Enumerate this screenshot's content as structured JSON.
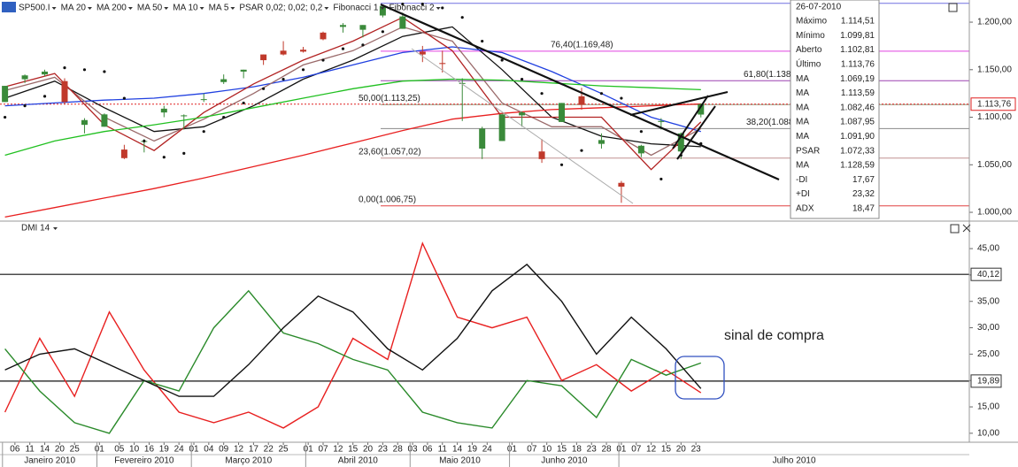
{
  "toolbar": {
    "symbol": "SP500.I",
    "tools": [
      "Fibonacci 1",
      "Fibonacci 2"
    ]
  },
  "info_panel": {
    "date": "26-07-2010",
    "rows": [
      {
        "label": "Máximo",
        "value": "1.114,51",
        "color": "#222222"
      },
      {
        "label": "Mínimo",
        "value": "1.099,81",
        "color": "#222222"
      },
      {
        "label": "Aberto",
        "value": "1.102,81",
        "color": "#222222"
      },
      {
        "label": "Último",
        "value": "1.113,76",
        "color": "#222222"
      },
      {
        "label": "MA",
        "value": "1.069,19",
        "color": "#222222"
      },
      {
        "label": "MA",
        "value": "1.113,59",
        "color": "#e03030"
      },
      {
        "label": "MA",
        "value": "1.082,46",
        "color": "#2040e0"
      },
      {
        "label": "MA",
        "value": "1.087,95",
        "color": "#c04040"
      },
      {
        "label": "MA",
        "value": "1.091,90",
        "color": "#c03030"
      },
      {
        "label": "PSAR",
        "value": "1.072,33",
        "color": "#222222"
      },
      {
        "label": "MA",
        "value": "1.128,59",
        "color": "#20b020"
      },
      {
        "label": "-DI",
        "value": "17,67",
        "color": "#e03030"
      },
      {
        "label": "+DI",
        "value": "23,32",
        "color": "#20a020"
      },
      {
        "label": "ADX",
        "value": "18,47",
        "color": "#222222"
      }
    ]
  },
  "chart_data": [
    {
      "type": "candlestick",
      "xlim": [
        -1,
        194
      ],
      "ylim": [
        992.6,
        1223.3
      ],
      "yticks": [
        {
          "value": 1000,
          "label": "1.000,00"
        },
        {
          "value": 1050,
          "label": "1.050,00"
        },
        {
          "value": 1100,
          "label": "1.100,00"
        },
        {
          "value": 1150,
          "label": "1.150,00"
        },
        {
          "value": 1200,
          "label": "1.200,00"
        }
      ],
      "candles": {
        "up_color": "#3a8a3a",
        "down_color": "#c0392b",
        "x": [
          0,
          4,
          8,
          12,
          16,
          20,
          24,
          28,
          32,
          36,
          40,
          44,
          48,
          52,
          56,
          60,
          64,
          68,
          72,
          76,
          80,
          84,
          88,
          92,
          96,
          100,
          104,
          108,
          112,
          116,
          120,
          124,
          128,
          132,
          136,
          140
        ],
        "open": [
          1116,
          1140,
          1145,
          1138,
          1092,
          1090,
          1066,
          1075,
          1105,
          1101,
          1119,
          1137,
          1148,
          1166,
          1170,
          1171,
          1189,
          1195,
          1192,
          1207,
          1193,
          1169,
          1157,
          1136,
          1067,
          1075,
          1102,
          1064,
          1095,
          1122,
          1072,
          1031,
          1062,
          1095,
          1064,
          1102.81
        ],
        "high": [
          1133,
          1145,
          1150,
          1141,
          1099,
          1104,
          1071,
          1077,
          1112,
          1103,
          1125,
          1145,
          1150,
          1166,
          1180,
          1174,
          1190,
          1199,
          1197,
          1217,
          1210,
          1175,
          1170,
          1141,
          1090,
          1104,
          1106,
          1077,
          1115,
          1131,
          1083,
          1033,
          1071,
          1099,
          1084,
          1114.51
        ],
        "low": [
          1116,
          1136,
          1143,
          1114,
          1083,
          1090,
          1056,
          1063,
          1100,
          1087,
          1116,
          1135,
          1141,
          1155,
          1165,
          1168,
          1181,
          1189,
          1184,
          1205,
          1193,
          1158,
          1147,
          1096,
          1056,
          1075,
          1090,
          1052,
          1095,
          1108,
          1067,
          1010,
          1058,
          1087,
          1056,
          1099.81
        ],
        "close": [
          1133,
          1144,
          1148,
          1116,
          1097,
          1103,
          1057,
          1075,
          1109,
          1102,
          1119,
          1140,
          1150,
          1160,
          1166,
          1169,
          1182,
          1197,
          1197,
          1217,
          1206,
          1166,
          1156,
          1136,
          1088,
          1103,
          1105,
          1056,
          1115,
          1113,
          1076,
          1027,
          1070,
          1096,
          1083,
          1113.76
        ]
      },
      "x": [
        0,
        10,
        20,
        30,
        40,
        50,
        60,
        70,
        80,
        90,
        100,
        110,
        120,
        130,
        140
      ],
      "series": [
        {
          "name": "MA 20",
          "color": "#111111",
          "values": [
            1120,
            1138,
            1110,
            1085,
            1090,
            1112,
            1140,
            1160,
            1185,
            1195,
            1150,
            1100,
            1080,
            1072,
            1069
          ]
        },
        {
          "name": "MA 200",
          "color": "#e82020",
          "values": [
            995,
            1005,
            1015,
            1025,
            1036,
            1048,
            1060,
            1073,
            1086,
            1098,
            1104,
            1108,
            1110,
            1112,
            1114
          ]
        },
        {
          "name": "MA 50",
          "color": "#2040e0",
          "values": [
            1112,
            1115,
            1118,
            1120,
            1125,
            1132,
            1142,
            1155,
            1168,
            1174,
            1168,
            1148,
            1125,
            1100,
            1085
          ]
        },
        {
          "name": "MA 10",
          "color": "#9a6a6a",
          "values": [
            1128,
            1142,
            1100,
            1075,
            1098,
            1125,
            1155,
            1170,
            1195,
            1180,
            1115,
            1090,
            1090,
            1060,
            1088
          ]
        },
        {
          "name": "MA 5",
          "color": "#b22222",
          "values": [
            1132,
            1146,
            1092,
            1065,
            1105,
            1135,
            1160,
            1180,
            1205,
            1170,
            1100,
            1100,
            1100,
            1045,
            1095
          ]
        },
        {
          "color": "#20c020",
          "values": [
            1060,
            1075,
            1085,
            1092,
            1100,
            1110,
            1120,
            1130,
            1138,
            1140,
            1139,
            1136,
            1133,
            1131,
            1129
          ]
        }
      ],
      "psar": {
        "name": "PSAR 0,02; 0,02; 0,2",
        "color": "#111111",
        "x": [
          0,
          4,
          8,
          12,
          16,
          20,
          24,
          28,
          32,
          36,
          40,
          44,
          48,
          52,
          56,
          60,
          64,
          68,
          72,
          76,
          80,
          84,
          88,
          92,
          96,
          100,
          104,
          108,
          112,
          116,
          120,
          124,
          128,
          132,
          136,
          140
        ],
        "values": [
          1100,
          1112,
          1122,
          1152,
          1150,
          1148,
          1120,
          1075,
          1058,
          1062,
          1085,
          1100,
          1115,
          1130,
          1140,
          1150,
          1160,
          1172,
          1176,
          1190,
          1219,
          1219,
          1215,
          1205,
          1180,
          1160,
          1140,
          1125,
          1050,
          1065,
          1125,
          1120,
          1085,
          1035,
          1060,
          1072.33
        ]
      },
      "fibonacci": [
        {
          "value": 1219.8,
          "color": "#7070e0"
        },
        {
          "value": 1169.48,
          "label": "76,40(1.169,48)",
          "color": "#e040e0"
        },
        {
          "value": 1138.4,
          "label": "61,80(1.138",
          "color": "#9b40b0"
        },
        {
          "value": 1113.25,
          "label": "50,00(1.113,25)",
          "color": "#8a9a7a"
        },
        {
          "value": 1088.1,
          "label": "38,20(1.088",
          "color": "#888888"
        },
        {
          "value": 1057.02,
          "label": "23,60(1.057,02)",
          "color": "#c09090"
        },
        {
          "value": 1006.75,
          "label": "0,00(1.006,75)",
          "color": "#e04040"
        }
      ],
      "last": {
        "value": 1113.76,
        "label": "1.113,76",
        "color": "#e02020"
      }
    },
    {
      "type": "line",
      "title": "DMI 14",
      "xlim": [
        -1,
        194
      ],
      "ylim": [
        8.3,
        48.2
      ],
      "yticks": [
        {
          "value": 10,
          "label": "10,00"
        },
        {
          "value": 15,
          "label": "15,00"
        },
        {
          "value": 20,
          "label": "20,00"
        },
        {
          "value": 25,
          "label": "25,00"
        },
        {
          "value": 30,
          "label": "30,00"
        },
        {
          "value": 35,
          "label": "35,00"
        },
        {
          "value": 40,
          "label": "40,00"
        },
        {
          "value": 45,
          "label": "45,00"
        }
      ],
      "x": [
        0,
        7,
        14,
        21,
        28,
        35,
        42,
        49,
        56,
        63,
        70,
        77,
        84,
        91,
        98,
        105,
        112,
        119,
        126,
        133,
        140
      ],
      "series": [
        {
          "color": "#e82020",
          "values": [
            14,
            28,
            17,
            33,
            22,
            14,
            12,
            14,
            11,
            15,
            28,
            24,
            46,
            32,
            30,
            32,
            20,
            23,
            18,
            22,
            17.67
          ]
        },
        {
          "color": "#2a8a2a",
          "values": [
            26,
            18,
            12,
            10,
            20,
            18,
            30,
            37,
            29,
            27,
            24,
            22,
            14,
            12,
            11,
            20,
            19,
            13,
            24,
            21,
            23.32
          ]
        },
        {
          "color": "#111111",
          "values": [
            22,
            25,
            26,
            23,
            20,
            17,
            17,
            23,
            30,
            36,
            33,
            26,
            22,
            28,
            37,
            42,
            35,
            25,
            32,
            26,
            18.47
          ]
        }
      ],
      "levels": [
        {
          "value": 40.12,
          "label": "40,12"
        },
        {
          "value": 19.89,
          "label": "19,89"
        }
      ],
      "xticks": [
        {
          "value": 2,
          "label": "06"
        },
        {
          "value": 5,
          "label": "11"
        },
        {
          "value": 8,
          "label": "14"
        },
        {
          "value": 11,
          "label": "20"
        },
        {
          "value": 14,
          "label": "25"
        },
        {
          "value": 19,
          "label": "01"
        },
        {
          "value": 23,
          "label": "05"
        },
        {
          "value": 26,
          "label": "10"
        },
        {
          "value": 29,
          "label": "16"
        },
        {
          "value": 32,
          "label": "19"
        },
        {
          "value": 35,
          "label": "24"
        },
        {
          "value": 38,
          "label": "01"
        },
        {
          "value": 41,
          "label": "04"
        },
        {
          "value": 44,
          "label": "09"
        },
        {
          "value": 47,
          "label": "12"
        },
        {
          "value": 50,
          "label": "17"
        },
        {
          "value": 53,
          "label": "22"
        },
        {
          "value": 56,
          "label": "25"
        },
        {
          "value": 61,
          "label": "01"
        },
        {
          "value": 64,
          "label": "07"
        },
        {
          "value": 67,
          "label": "12"
        },
        {
          "value": 70,
          "label": "15"
        },
        {
          "value": 73,
          "label": "20"
        },
        {
          "value": 76,
          "label": "23"
        },
        {
          "value": 79,
          "label": "28"
        },
        {
          "value": 82,
          "label": "03"
        },
        {
          "value": 85,
          "label": "06"
        },
        {
          "value": 88,
          "label": "11"
        },
        {
          "value": 91,
          "label": "14"
        },
        {
          "value": 94,
          "label": "19"
        },
        {
          "value": 97,
          "label": "24"
        },
        {
          "value": 102,
          "label": "01"
        },
        {
          "value": 106,
          "label": "07"
        },
        {
          "value": 109,
          "label": "10"
        },
        {
          "value": 112,
          "label": "15"
        },
        {
          "value": 115,
          "label": "18"
        },
        {
          "value": 118,
          "label": "23"
        },
        {
          "value": 121,
          "label": "28"
        },
        {
          "value": 124,
          "label": "01"
        },
        {
          "value": 127,
          "label": "07"
        },
        {
          "value": 130,
          "label": "12"
        },
        {
          "value": 133,
          "label": "15"
        },
        {
          "value": 136,
          "label": "20"
        },
        {
          "value": 139,
          "label": "23"
        }
      ],
      "months": [
        {
          "value": 0,
          "label": "Janeiro 2010"
        },
        {
          "value": 19,
          "label": "Fevereiro 2010"
        },
        {
          "value": 38,
          "label": "Março 2010"
        },
        {
          "value": 61,
          "label": "Abril 2010"
        },
        {
          "value": 82,
          "label": "Maio 2010"
        },
        {
          "value": 102,
          "label": "Junho 2010"
        },
        {
          "value": 124,
          "label": "Julho 2010"
        }
      ],
      "annotation": "sinal de compra"
    }
  ]
}
